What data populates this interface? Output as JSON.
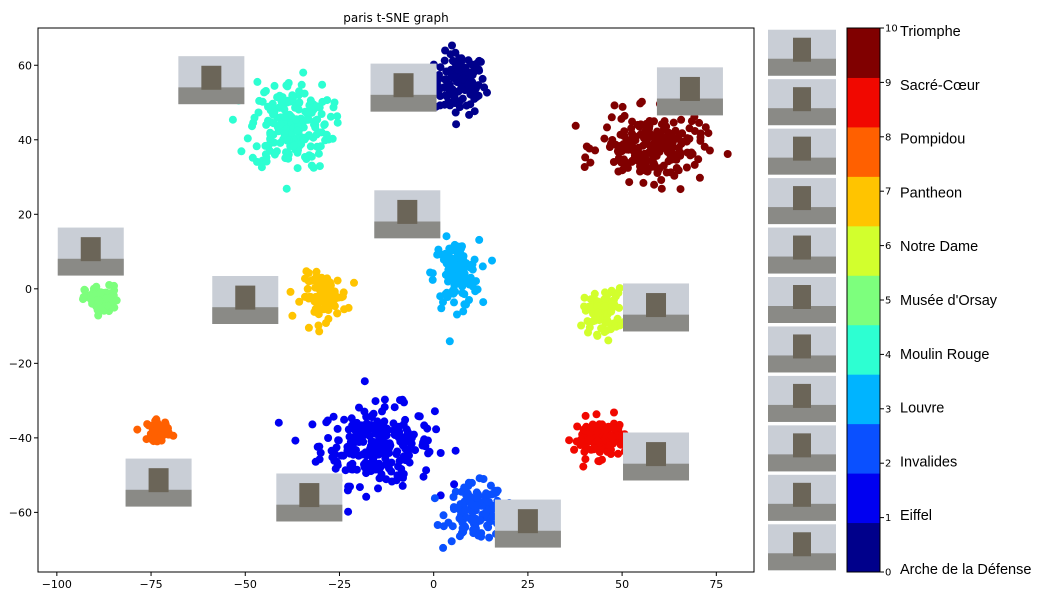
{
  "chart_data": {
    "type": "scatter",
    "title": "paris t-SNE graph",
    "xlabel": "",
    "ylabel": "",
    "xlim": [
      -105,
      85
    ],
    "ylim": [
      -76,
      70
    ],
    "xticks": [
      -100,
      -75,
      -50,
      -25,
      0,
      25,
      50,
      75
    ],
    "yticks": [
      -60,
      -40,
      -20,
      0,
      20,
      40,
      60
    ],
    "grid": false,
    "legend": "right colorbar with thumbnail column",
    "colorbar": {
      "ticks": [
        0,
        1,
        2,
        3,
        4,
        5,
        6,
        7,
        8,
        9,
        10
      ],
      "labels": [
        "Arche de la Défense",
        "Eiffel",
        "Invalides",
        "Louvre",
        "Moulin Rouge",
        "Musée d'Orsay",
        "Notre Dame",
        "Pantheon",
        "Pompidou",
        "Sacré-Cœur",
        "Triomphe"
      ],
      "colors": [
        "#00008b",
        "#0000f1",
        "#0a50ff",
        "#00b4ff",
        "#2dffd2",
        "#7dff7d",
        "#d2ff2d",
        "#ffc400",
        "#ff6000",
        "#f10800",
        "#800000"
      ]
    },
    "series": [
      {
        "class_index": 0,
        "color": "#00008b",
        "center": [
          7,
          55
        ],
        "spread": [
          4.5,
          5.5
        ],
        "count": 120
      },
      {
        "class_index": 1,
        "color": "#0000f1",
        "center": [
          -15,
          -42
        ],
        "spread": [
          10,
          7
        ],
        "count": 260
      },
      {
        "class_index": 2,
        "color": "#0a50ff",
        "center": [
          11,
          -60
        ],
        "spread": [
          5,
          5
        ],
        "count": 120
      },
      {
        "class_index": 3,
        "color": "#00b4ff",
        "center": [
          6,
          4
        ],
        "spread": [
          4,
          6
        ],
        "count": 120
      },
      {
        "class_index": 4,
        "color": "#2dffd2",
        "center": [
          -38,
          44
        ],
        "spread": [
          7,
          8
        ],
        "count": 200
      },
      {
        "class_index": 5,
        "color": "#7dff7d",
        "center": [
          -88,
          -3
        ],
        "spread": [
          3,
          2.5
        ],
        "count": 60
      },
      {
        "class_index": 6,
        "color": "#d2ff2d",
        "center": [
          45,
          -6
        ],
        "spread": [
          3.5,
          4
        ],
        "count": 90
      },
      {
        "class_index": 7,
        "color": "#ffc400",
        "center": [
          -29,
          -2
        ],
        "spread": [
          4,
          4
        ],
        "count": 100
      },
      {
        "class_index": 8,
        "color": "#ff6000",
        "center": [
          -73,
          -38
        ],
        "spread": [
          2,
          1.8
        ],
        "count": 50
      },
      {
        "class_index": 9,
        "color": "#f10800",
        "center": [
          44,
          -40
        ],
        "spread": [
          4.5,
          3.5
        ],
        "count": 120
      },
      {
        "class_index": 10,
        "color": "#800000",
        "center": [
          58,
          38
        ],
        "spread": [
          9,
          6
        ],
        "count": 220
      }
    ],
    "thumbnails": [
      {
        "class_index": 4,
        "x": -59,
        "y": 56
      },
      {
        "class_index": 0,
        "x": -8,
        "y": 54
      },
      {
        "class_index": 10,
        "x": 68,
        "y": 53
      },
      {
        "class_index": 3,
        "x": -7,
        "y": 20
      },
      {
        "class_index": 5,
        "x": -91,
        "y": 10
      },
      {
        "class_index": 7,
        "x": -50,
        "y": -3
      },
      {
        "class_index": 6,
        "x": 59,
        "y": -5
      },
      {
        "class_index": 8,
        "x": -73,
        "y": -52
      },
      {
        "class_index": 1,
        "x": -33,
        "y": -56
      },
      {
        "class_index": 9,
        "x": 59,
        "y": -45
      },
      {
        "class_index": 2,
        "x": 25,
        "y": -63
      }
    ]
  }
}
